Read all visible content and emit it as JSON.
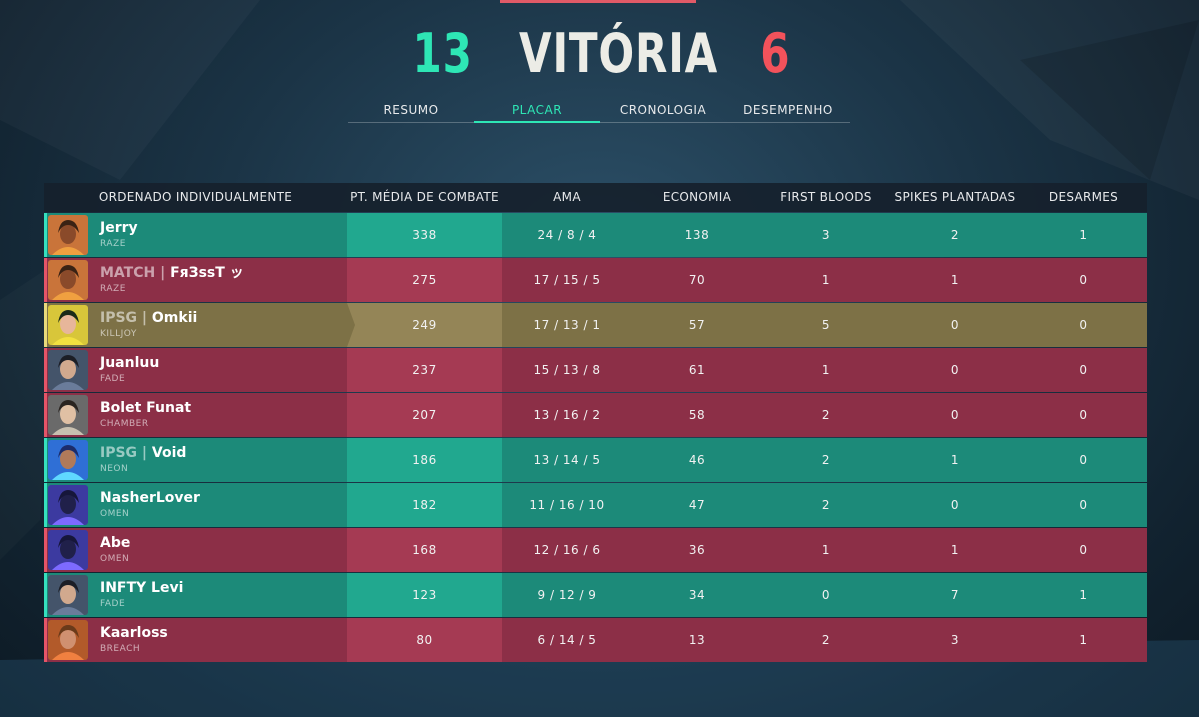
{
  "header": {
    "team_score": "13",
    "result": "VITÓRIA",
    "enemy_score": "6",
    "colors": {
      "win": "#2ee6b5",
      "lose": "#f2525b"
    }
  },
  "tabs": [
    {
      "label": "RESUMO",
      "active": false
    },
    {
      "label": "PLACAR",
      "active": true
    },
    {
      "label": "CRONOLOGIA",
      "active": false
    },
    {
      "label": "DESEMPENHO",
      "active": false
    }
  ],
  "scoreboard": {
    "columns": [
      "ORDENADO INDIVIDUALMENTE",
      "PT. MÉDIA DE COMBATE",
      "AMA",
      "ECONOMIA",
      "FIRST BLOODS",
      "SPIKES PLANTADAS",
      "DESARMES"
    ],
    "rows": [
      {
        "team": "win",
        "tag": "",
        "name": "Jerry",
        "agent": "RAZE",
        "acs": "338",
        "kda": "24 / 8 / 4",
        "econ": "138",
        "fb": "3",
        "plants": "2",
        "defuses": "1",
        "avatar_icon": "raze-agent-icon"
      },
      {
        "team": "lose",
        "tag": "MATCH |",
        "name": "FяЗssT ッ",
        "agent": "RAZE",
        "acs": "275",
        "kda": "17 / 15 / 5",
        "econ": "70",
        "fb": "1",
        "plants": "1",
        "defuses": "0",
        "avatar_icon": "raze-agent-icon"
      },
      {
        "team": "me",
        "tag": "IPSG |",
        "name": "Omkii",
        "agent": "KILLJOY",
        "acs": "249",
        "kda": "17 / 13 / 1",
        "econ": "57",
        "fb": "5",
        "plants": "0",
        "defuses": "0",
        "avatar_icon": "killjoy-agent-icon"
      },
      {
        "team": "lose",
        "tag": "",
        "name": "Juanluu",
        "agent": "FADE",
        "acs": "237",
        "kda": "15 / 13 / 8",
        "econ": "61",
        "fb": "1",
        "plants": "0",
        "defuses": "0",
        "avatar_icon": "fade-agent-icon"
      },
      {
        "team": "lose",
        "tag": "",
        "name": "Bolet Funat",
        "agent": "CHAMBER",
        "acs": "207",
        "kda": "13 / 16 / 2",
        "econ": "58",
        "fb": "2",
        "plants": "0",
        "defuses": "0",
        "avatar_icon": "chamber-agent-icon"
      },
      {
        "team": "win",
        "tag": "IPSG |",
        "name": "Void",
        "agent": "NEON",
        "acs": "186",
        "kda": "13 / 14 / 5",
        "econ": "46",
        "fb": "2",
        "plants": "1",
        "defuses": "0",
        "avatar_icon": "neon-agent-icon"
      },
      {
        "team": "win",
        "tag": "",
        "name": "NasherLover",
        "agent": "OMEN",
        "acs": "182",
        "kda": "11 / 16 / 10",
        "econ": "47",
        "fb": "2",
        "plants": "0",
        "defuses": "0",
        "avatar_icon": "omen-agent-icon"
      },
      {
        "team": "lose",
        "tag": "",
        "name": "Abe",
        "agent": "OMEN",
        "acs": "168",
        "kda": "12 / 16 / 6",
        "econ": "36",
        "fb": "1",
        "plants": "1",
        "defuses": "0",
        "avatar_icon": "omen-agent-icon"
      },
      {
        "team": "win",
        "tag": "",
        "name": "INFTY Levi",
        "agent": "FADE",
        "acs": "123",
        "kda": "9 / 12 / 9",
        "econ": "34",
        "fb": "0",
        "plants": "7",
        "defuses": "1",
        "avatar_icon": "fade-agent-icon"
      },
      {
        "team": "lose",
        "tag": "",
        "name": "Kaarloss",
        "agent": "BREACH",
        "acs": "80",
        "kda": "6 / 14 / 5",
        "econ": "13",
        "fb": "2",
        "plants": "3",
        "defuses": "1",
        "avatar_icon": "breach-agent-icon"
      }
    ]
  }
}
